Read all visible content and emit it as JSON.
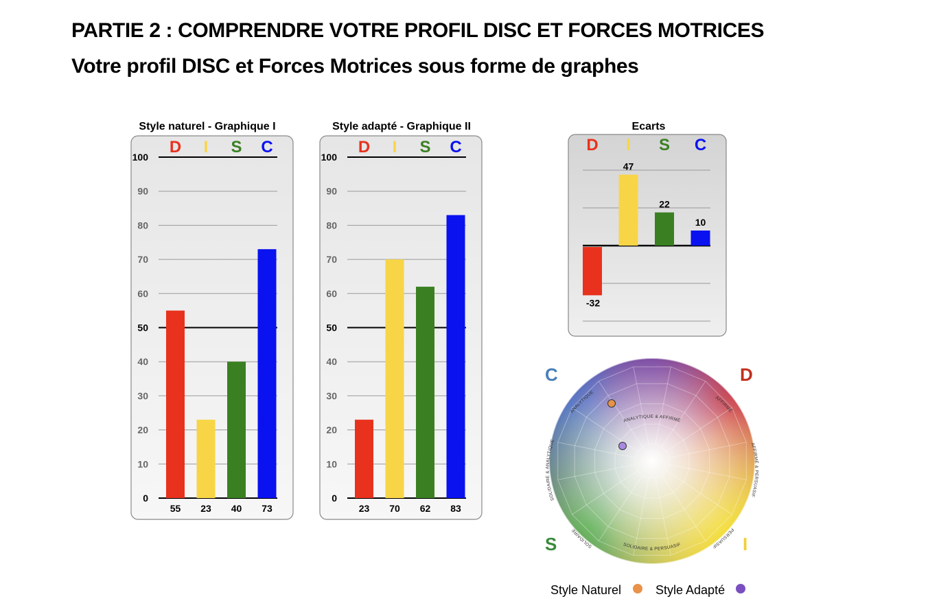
{
  "header": {
    "title": "PARTIE 2 : COMPRENDRE VOTRE PROFIL DISC ET FORCES MOTRICES",
    "subtitle": "Votre profil DISC et Forces Motrices sous forme de graphes"
  },
  "disc_letters": [
    "D",
    "I",
    "S",
    "C"
  ],
  "colors": {
    "D": "#e8321e",
    "I": "#f8d547",
    "S": "#3a8022",
    "C": "#0a12f0"
  },
  "chart_data": [
    {
      "type": "bar",
      "title": "Style naturel - Graphique I",
      "categories": [
        "D",
        "I",
        "S",
        "C"
      ],
      "values": [
        55,
        23,
        40,
        73
      ],
      "value_labels": [
        "55",
        "23",
        "40",
        "73"
      ],
      "yticks": [
        "0",
        "10",
        "20",
        "30",
        "40",
        "50",
        "60",
        "70",
        "80",
        "90",
        "100"
      ],
      "ylim": [
        0,
        100
      ],
      "reference_line": 50
    },
    {
      "type": "bar",
      "title": "Style adapté - Graphique II",
      "categories": [
        "D",
        "I",
        "S",
        "C"
      ],
      "values": [
        23,
        70,
        62,
        83
      ],
      "value_labels": [
        "23",
        "70",
        "62",
        "83"
      ],
      "yticks": [
        "0",
        "10",
        "20",
        "30",
        "40",
        "50",
        "60",
        "70",
        "80",
        "90",
        "100"
      ],
      "ylim": [
        0,
        100
      ],
      "reference_line": 50
    },
    {
      "type": "bar",
      "title": "Ecarts",
      "categories": [
        "D",
        "I",
        "S",
        "C"
      ],
      "values": [
        -32,
        47,
        22,
        10
      ],
      "value_labels": [
        "-32",
        "47",
        "22",
        "10"
      ],
      "ylim": [
        -50,
        50
      ]
    }
  ],
  "wheel": {
    "corner_letters": {
      "top_left": "C",
      "top_right": "D",
      "bottom_left": "S",
      "bottom_right": "I"
    },
    "ring_labels": [
      "ANALYTIQUE & AFFIRMÉ",
      "AFFIRMÉ",
      "AFFIRMÉ & PERSUASIF",
      "PERSUASIF",
      "SOLIDAIRE & PERSUASIF",
      "SOLIDAIRE",
      "SOLIDAIRE & ANALYTIQUE",
      "ANALYTIQUE"
    ],
    "legend": [
      {
        "label": "Style Naturel",
        "color": "#e8924a"
      },
      {
        "label": "Style Adapté",
        "color": "#7a4fc0"
      }
    ]
  }
}
